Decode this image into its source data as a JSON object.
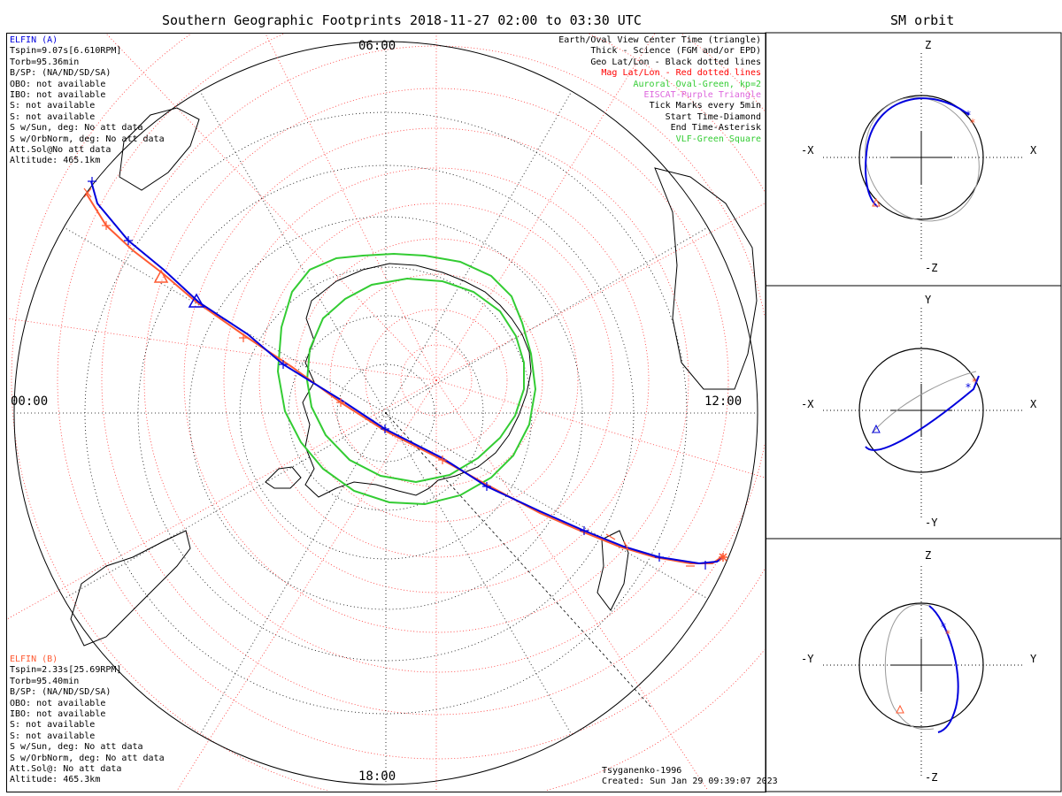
{
  "title": "Southern Geographic Footprints 2018-11-27 02:00 to 03:30 UTC",
  "sm_title": "SM orbit",
  "colors": {
    "elfin_a": "#0000dd",
    "elfin_b": "#ff5a32",
    "mag": "#ff0000",
    "oval": "#33cc33",
    "eiscat": "#dd66dd",
    "geo": "#000000"
  },
  "clock_labels": {
    "top": "06:00",
    "left": "00:00",
    "right": "12:00",
    "bottom": "18:00"
  },
  "elfin_a": {
    "name": "ELFIN (A)",
    "lines": [
      "Tspin=9.07s[6.610RPM]",
      "Torb=95.36min",
      "B/SP: (NA/ND/SD/SA)",
      "OBO: not available",
      "IBO: not available",
      "S: not available",
      "S: not available",
      "S w/Sun, deg: No att data",
      "S w/OrbNorm, deg: No att data",
      "Att.Sol@No att data",
      "Altitude: 465.1km"
    ]
  },
  "elfin_b": {
    "name": "ELFIN (B)",
    "lines": [
      "Tspin=2.33s[25.69RPM]",
      "Torb=95.40min",
      "B/SP: (NA/ND/SD/SA)",
      "OBO: not available",
      "IBO: not available",
      "S: not available",
      "S: not available",
      "S w/Sun, deg: No att data",
      "S w/OrbNorm, deg: No att data",
      "Att.Sol@: No att data",
      "Altitude: 465.3km"
    ]
  },
  "legend": [
    {
      "text": "Earth/Oval View Center Time (triangle)",
      "color": "#000000"
    },
    {
      "text": "Thick - Science (FGM and/or EPD)",
      "color": "#000000"
    },
    {
      "text": "Geo Lat/Lon - Black dotted lines",
      "color": "#000000"
    },
    {
      "text": "Mag Lat/Lon - Red dotted lines",
      "color": "#ff0000"
    },
    {
      "text": "Auroral Oval-Green, kp=2",
      "color": "#33cc33"
    },
    {
      "text": "EISCAT-Purple Triangle",
      "color": "#dd66dd"
    },
    {
      "text": "Tick Marks every 5min",
      "color": "#000000"
    },
    {
      "text": "Start Time-Diamond",
      "color": "#000000"
    },
    {
      "text": "End Time-Asterisk",
      "color": "#000000"
    },
    {
      "text": "VLF-Green Square",
      "color": "#33cc33"
    }
  ],
  "footer": {
    "model": "Tsyganenko-1996",
    "created": "Created: Sun Jan 29 09:39:07 2023"
  },
  "sm_panels": [
    {
      "top": "Z",
      "bottom": "-Z",
      "left": "-X",
      "right": "X"
    },
    {
      "top": "Y",
      "bottom": "-Y",
      "left": "-X",
      "right": "X"
    },
    {
      "top": "Z",
      "bottom": "-Z",
      "left": "-Y",
      "right": "Y"
    }
  ],
  "chart_data": {
    "type": "polar-map",
    "title": "Southern Geographic Footprints 2018-11-27 02:00 to 03:30 UTC",
    "projection": "south polar stereographic, local time around rim",
    "time_start": "02:00",
    "time_end": "03:30",
    "local_time_labels": [
      "06:00",
      "00:00",
      "12:00",
      "18:00"
    ],
    "series": [
      {
        "name": "ELFIN (A)",
        "color": "#0000dd",
        "tick_interval_min": 5
      },
      {
        "name": "ELFIN (B)",
        "color": "#ff5a32",
        "tick_interval_min": 5
      }
    ],
    "kp": 2,
    "sm_orbit_views": [
      "X-Z",
      "X-Y",
      "Y-Z"
    ]
  }
}
